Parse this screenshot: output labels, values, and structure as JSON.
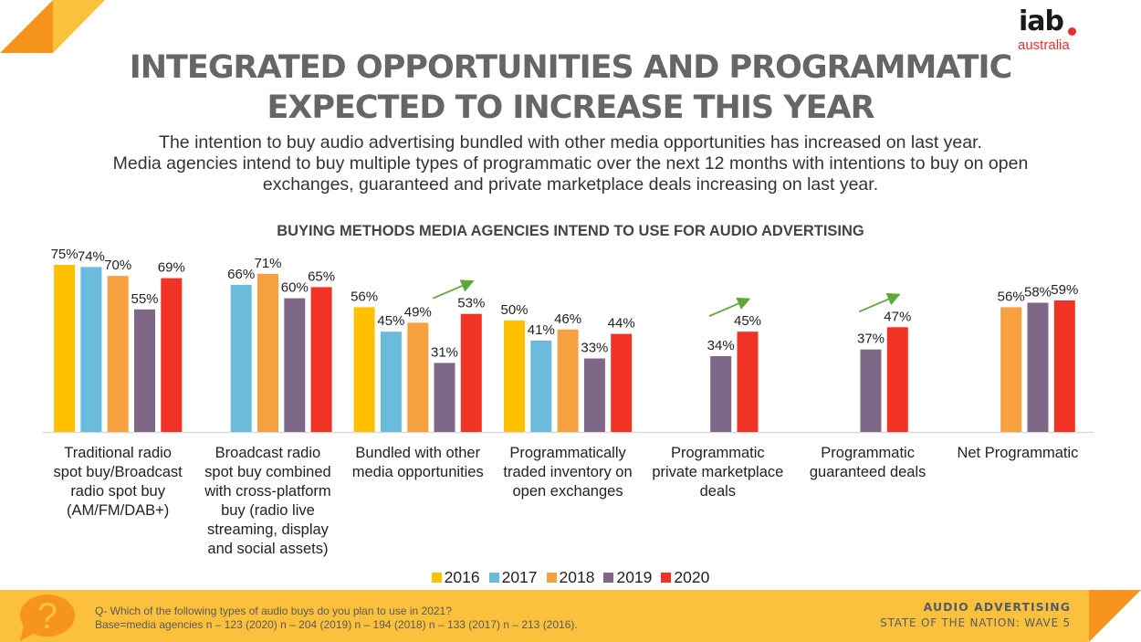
{
  "header": {
    "title_line1": "INTEGRATED OPPORTUNITIES AND PROGRAMMATIC",
    "title_line2": "EXPECTED TO INCREASE THIS YEAR",
    "subtitle_line1": "The intention to buy audio advertising bundled with other media opportunities has increased on last year.",
    "subtitle_line2": "Media agencies intend to buy multiple types of programmatic over the next 12 months with intentions to buy on open",
    "subtitle_line3": "exchanges, guaranteed and private marketplace deals increasing on last year."
  },
  "logo": {
    "brand": "iab",
    "region": "australia",
    "accent": "#e8302a"
  },
  "chart_data": {
    "type": "bar",
    "title": "BUYING METHODS MEDIA AGENCIES INTEND TO USE FOR AUDIO ADVERTISING",
    "xlabel": "",
    "ylabel": "",
    "ylim": [
      0,
      80
    ],
    "grid": false,
    "legend_position": "bottom",
    "value_format": "percent",
    "categories": [
      [
        "Traditional radio",
        "spot buy/Broadcast",
        "radio spot buy",
        "(AM/FM/DAB+)"
      ],
      [
        "Broadcast radio",
        "spot buy combined",
        "with cross-platform",
        "buy (radio live",
        "streaming, display",
        "and social assets)"
      ],
      [
        "Bundled with other",
        "media opportunities"
      ],
      [
        "Programmatically",
        "traded inventory on",
        "open exchanges"
      ],
      [
        "Programmatic",
        "private marketplace",
        "deals"
      ],
      [
        "Programmatic",
        "guaranteed  deals"
      ],
      [
        "Net Programmatic"
      ]
    ],
    "series": [
      {
        "name": "2016",
        "color": "#ffc000",
        "values": [
          75,
          null,
          56,
          50,
          null,
          null,
          null
        ]
      },
      {
        "name": "2017",
        "color": "#6bbbdc",
        "values": [
          74,
          66,
          45,
          41,
          null,
          null,
          null
        ]
      },
      {
        "name": "2018",
        "color": "#f6a03f",
        "values": [
          70,
          71,
          49,
          46,
          null,
          null,
          56
        ]
      },
      {
        "name": "2019",
        "color": "#7f6788",
        "values": [
          55,
          60,
          31,
          33,
          34,
          37,
          58
        ]
      },
      {
        "name": "2020",
        "color": "#f03325",
        "values": [
          69,
          65,
          53,
          44,
          45,
          47,
          59
        ]
      }
    ],
    "annotations": [
      {
        "type": "trend-arrow-up",
        "category_index": 2,
        "color": "#5ea83a"
      },
      {
        "type": "trend-arrow-up",
        "category_index": 4,
        "color": "#5ea83a"
      },
      {
        "type": "trend-arrow-up",
        "category_index": 5,
        "color": "#5ea83a"
      }
    ]
  },
  "footer": {
    "question": "Q- Which of the following types of audio buys do you plan to use in 2021?",
    "base": "Base=media agencies n – 123 (2020)  n – 204 (2019) n – 194 (2018) n – 133 (2017) n – 213 (2016).",
    "report_title": "AUDIO ADVERTISING",
    "report_subtitle": "STATE OF THE NATION: WAVE 5",
    "band_color": "#fcc13c",
    "accent_color": "#f7941d"
  }
}
